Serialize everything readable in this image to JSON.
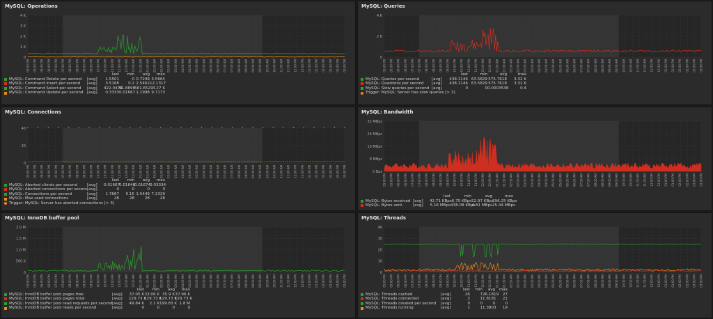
{
  "legend_header": {
    "last": "last",
    "min": "min",
    "avg": "avg",
    "max": "max"
  },
  "axis_times": [
    "05:00 PM",
    "06:00 PM",
    "07:00 PM",
    "08:00 PM",
    "09:00 PM",
    "10:00 PM",
    "11:00 PM",
    "12:00 AM",
    "01:00 AM",
    "02:00 AM",
    "03:00 AM",
    "04:00 AM",
    "05:00 AM",
    "06:00 AM",
    "07:00 AM",
    "08:00 AM",
    "09:00 AM",
    "10:00 AM",
    "11:00 AM",
    "12:00 PM",
    "01:00 PM",
    "02:00 PM",
    "03:00 PM"
  ],
  "panels": [
    {
      "title": "MySQL: Operations",
      "yticks": [
        "4 K",
        "3 K",
        "2 K",
        "1 K",
        "0"
      ],
      "rows": [
        {
          "name": "MySQL: Command Delete per second",
          "fn": "[avg]",
          "last": "1.5501",
          "min": "0",
          "avg": "0.7249",
          "max": "3.5664",
          "color": "#2e9e2e"
        },
        {
          "name": "MySQL: Command Insert per second",
          "fn": "[avg]",
          "last": "3.5168",
          "min": "0.2",
          "avg": "2.5462",
          "max": "12.1317",
          "color": "#d62f1f"
        },
        {
          "name": "MySQL: Command Select per second",
          "fn": "[avg]",
          "last": "422.0474",
          "min": "61.8896",
          "avg": "561.6529",
          "max": "3.27 K",
          "color": "#2aa52a"
        },
        {
          "name": "MySQL: Command Update per second",
          "fn": "[avg]",
          "last": "0.3333",
          "min": "0.01667",
          "avg": "1.1998",
          "max": "9.7173",
          "color": "#e98a1a"
        }
      ],
      "trigger": ""
    },
    {
      "title": "MySQL: Queries",
      "yticks": [
        "4 K",
        "2 K",
        "0"
      ],
      "rows": [
        {
          "name": "MySQL: Queries per second",
          "fn": "[avg]",
          "last": "438.1146",
          "min": "63.5829",
          "avg": "575.7618",
          "max": "3.32 K",
          "color": "#2e9e2e"
        },
        {
          "name": "MySQL: Questions per second",
          "fn": "[avg]",
          "last": "438.1146",
          "min": "63.5829",
          "avg": "575.7618",
          "max": "3.32 K",
          "color": "#d62f1f"
        },
        {
          "name": "MySQL: Slow queries per second",
          "fn": "[avg]",
          "last": "0",
          "min": "0",
          "avg": "0.0003538",
          "max": "0.4",
          "color": "#2aa52a"
        }
      ],
      "trigger": "Trigger: MySQL: Server has slow queries    [> 3]"
    },
    {
      "title": "MySQL: Connections",
      "yticks": [
        "40",
        "20",
        "0"
      ],
      "rows": [
        {
          "name": "MySQL: Aborted clients per second",
          "fn": "[avg]",
          "last": "0.01667",
          "min": "0.01648",
          "avg": "0.01674",
          "max": "0.03334",
          "color": "#2e9e2e"
        },
        {
          "name": "MySQL: Aborted connections per second",
          "fn": "[avg]",
          "last": "0",
          "min": "0",
          "avg": "0",
          "max": "0",
          "color": "#d62f1f"
        },
        {
          "name": "MySQL: Connections per second",
          "fn": "[avg]",
          "last": "1.7667",
          "min": "0.15",
          "avg": "1.5449",
          "max": "7.2329",
          "color": "#2aa52a"
        },
        {
          "name": "MySQL: Max used connections",
          "fn": "[avg]",
          "last": "28",
          "min": "28",
          "avg": "28",
          "max": "28",
          "color": "#e98a1a"
        }
      ],
      "trigger": "Trigger: MySQL: Server has aborted connections    [> 3]"
    },
    {
      "title": "MySQL: Bandwidth",
      "yticks": [
        "32 MBps",
        "24 MBps",
        "16 MBps",
        "8 MBps",
        "0 Bps"
      ],
      "rows": [
        {
          "name": "MySQL: Bytes received",
          "fn": "[avg]",
          "last": "42.71 KBps",
          "min": "6.75 KBps",
          "avg": "52.97 KBps",
          "max": "296.25 KBps",
          "color": "#2e9e2e"
        },
        {
          "name": "MySQL: Bytes sent",
          "fn": "[avg]",
          "last": "5.16 MBps",
          "min": "438.08 KBps",
          "avg": "4.81 MBps",
          "max": "25.44 MBps",
          "color": "#d62f1f"
        }
      ],
      "trigger": ""
    },
    {
      "title": "MySQL: InnoDB buffer pool",
      "yticks": [
        "2.0 M",
        "1.5 M",
        "1.0 M",
        "500 K",
        "0"
      ],
      "rows": [
        {
          "name": "MySQL: InnoDB buffer pool pages free",
          "fn": "[avg]",
          "last": "37.05 K",
          "min": "33.06 K",
          "avg": "35.9 K",
          "max": "37.96 K",
          "color": "#2e9e2e"
        },
        {
          "name": "MySQL: InnoDB buffer pool pages total",
          "fn": "[avg]",
          "last": "129.73 K",
          "min": "129.73 K",
          "avg": "129.73 K",
          "max": "129.73 K",
          "color": "#d62f1f"
        },
        {
          "name": "MySQL: InnoDB buffer pool read requests per second",
          "fn": "[avg]",
          "last": "49.84 K",
          "min": "2.1 K",
          "avg": "199.83 K",
          "max": "1.8 M",
          "color": "#2aa52a"
        },
        {
          "name": "MySQL: InnoDB buffer pool reads per second",
          "fn": "[avg]",
          "last": "0",
          "min": "0",
          "avg": "0",
          "max": "0",
          "color": "#e98a1a"
        }
      ],
      "trigger": ""
    },
    {
      "title": "MySQL: Threads",
      "yticks": [
        "40",
        "30",
        "20",
        "10",
        "0"
      ],
      "rows": [
        {
          "name": "MySQL: Threads cached",
          "fn": "[avg]",
          "last": "26",
          "min": "7",
          "avg": "26.1819",
          "max": "27",
          "color": "#2e9e2e"
        },
        {
          "name": "MySQL: Threads connected",
          "fn": "[avg]",
          "last": "2",
          "min": "1",
          "avg": "1.8181",
          "max": "21",
          "color": "#d62f1f"
        },
        {
          "name": "MySQL: Threads created per second",
          "fn": "[avg]",
          "last": "0",
          "min": "0",
          "avg": "0",
          "max": "0",
          "color": "#2aa52a"
        },
        {
          "name": "MySQL: Threads running",
          "fn": "[avg]",
          "last": "1",
          "min": "1",
          "avg": "1.3803",
          "max": "19",
          "color": "#e98a1a"
        }
      ],
      "trigger": ""
    }
  ]
}
